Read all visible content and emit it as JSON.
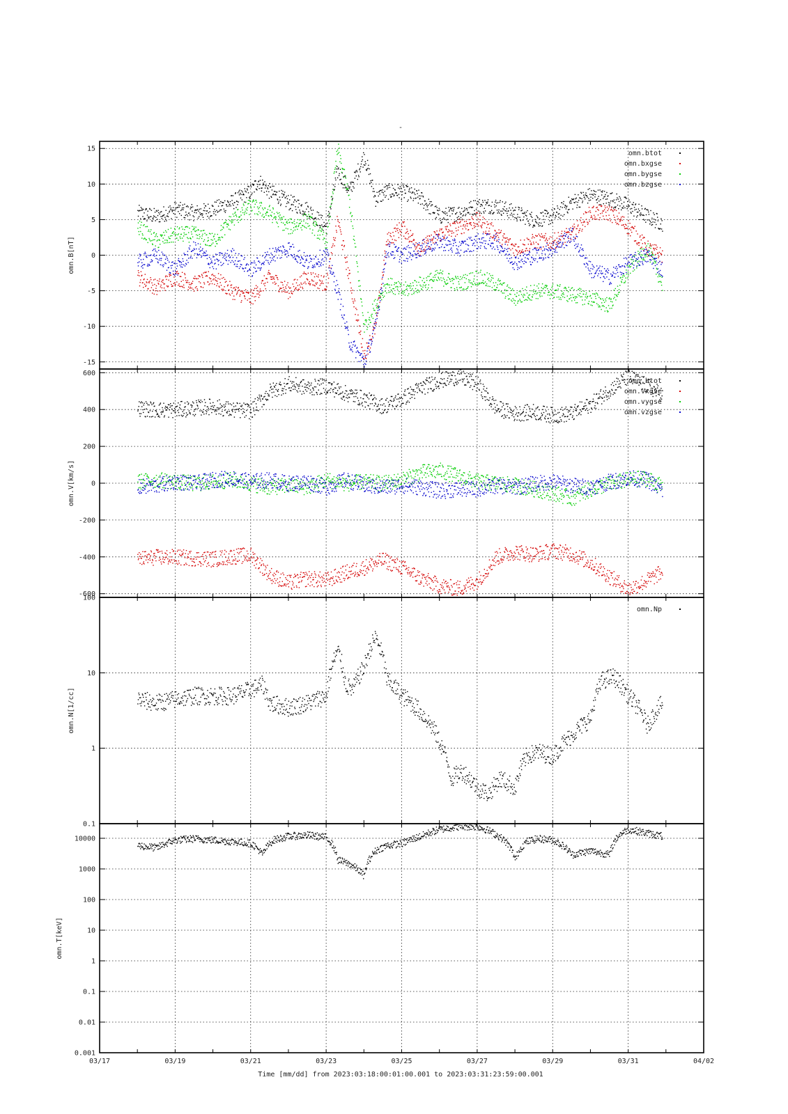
{
  "figure": {
    "title": "-",
    "xlabel": "Time [mm/dd]  from 2023:03:18:00:01:00.001  to  2023:03:31:23:59:00.001",
    "x_ticks": [
      "03/17",
      "03/19",
      "03/21",
      "03/23",
      "03/25",
      "03/27",
      "03/29",
      "03/31",
      "04/02"
    ],
    "colors": {
      "black": "#000000",
      "red": "#d40000",
      "green": "#00cc00",
      "blue": "#0000cc"
    }
  },
  "chart_data": [
    {
      "type": "scatter",
      "ylabel": "omn.B[nT]",
      "ylim": [
        -16,
        16
      ],
      "yscale": "linear",
      "y_ticks": [
        "-15",
        "-10",
        "-5",
        "0",
        "5",
        "10",
        "15"
      ],
      "legend_placement": "top-right",
      "grid": true,
      "series": [
        {
          "name": "omn.btot",
          "color": "#000000",
          "x": [
            18.0,
            18.5,
            19.0,
            19.5,
            20.0,
            20.5,
            21.0,
            21.2,
            21.5,
            22.0,
            22.5,
            23.0,
            23.3,
            23.6,
            24.0,
            24.3,
            24.6,
            25.0,
            25.5,
            26.0,
            26.5,
            27.0,
            27.5,
            28.0,
            28.5,
            29.0,
            29.5,
            30.0,
            30.5,
            31.0,
            31.5,
            31.9
          ],
          "y": [
            6,
            5.5,
            6.5,
            6,
            6.5,
            7.5,
            9,
            10.5,
            9,
            7.5,
            6.5,
            4,
            12,
            9,
            14,
            8,
            9,
            9,
            8,
            5.5,
            6,
            7,
            7,
            6,
            5,
            5.5,
            7.5,
            8.5,
            8,
            7,
            5.5,
            4.5
          ]
        },
        {
          "name": "omn.bxgse",
          "color": "#d40000",
          "x": [
            18.0,
            18.5,
            19.0,
            19.5,
            20.0,
            20.5,
            21.0,
            21.5,
            22.0,
            22.5,
            23.0,
            23.3,
            23.6,
            24.0,
            24.3,
            24.6,
            25.0,
            25.5,
            26.0,
            26.5,
            27.0,
            27.5,
            28.0,
            28.5,
            29.0,
            29.5,
            30.0,
            30.5,
            31.0,
            31.5,
            31.9
          ],
          "y": [
            -3,
            -4.5,
            -3,
            -4,
            -3,
            -5,
            -6,
            -3,
            -5,
            -3,
            -4,
            5,
            -3,
            -14,
            -10,
            2,
            4,
            1,
            3,
            4,
            5,
            3,
            1,
            2,
            2,
            3,
            6,
            6,
            4,
            1,
            0
          ]
        },
        {
          "name": "omn.bygse",
          "color": "#00cc00",
          "x": [
            18.0,
            18.5,
            19.0,
            19.5,
            20.0,
            20.5,
            21.0,
            21.5,
            22.0,
            22.5,
            23.0,
            23.3,
            23.6,
            24.0,
            24.3,
            24.6,
            25.0,
            25.5,
            26.0,
            26.5,
            27.0,
            27.5,
            28.0,
            28.5,
            29.0,
            29.5,
            30.0,
            30.5,
            31.0,
            31.5,
            31.9
          ],
          "y": [
            4,
            2,
            3,
            3,
            2,
            5,
            7,
            6,
            4,
            5,
            2,
            15,
            8,
            -10,
            -7,
            -4,
            -5,
            -4,
            -3,
            -4,
            -3,
            -4,
            -6,
            -5,
            -5,
            -5.5,
            -6,
            -7,
            -2,
            1,
            -4
          ]
        },
        {
          "name": "omn.bzgse",
          "color": "#0000cc",
          "x": [
            18.0,
            18.5,
            19.0,
            19.5,
            20.0,
            20.5,
            21.0,
            21.5,
            22.0,
            22.5,
            23.0,
            23.3,
            23.6,
            24.0,
            24.3,
            24.6,
            25.0,
            25.5,
            26.0,
            26.5,
            27.0,
            27.5,
            28.0,
            28.5,
            29.0,
            29.5,
            30.0,
            30.5,
            31.0,
            31.5,
            31.9
          ],
          "y": [
            -1,
            0,
            -2,
            1,
            -1,
            0,
            -2,
            0,
            1,
            -1,
            0,
            -5,
            -12,
            -15,
            -10,
            1,
            0,
            1,
            2,
            1,
            2,
            2,
            -1,
            0,
            1,
            3,
            -2,
            -3,
            -1,
            0,
            -2
          ]
        }
      ]
    },
    {
      "type": "scatter",
      "ylabel": "omn.V[km/s]",
      "ylim": [
        -620,
        620
      ],
      "yscale": "linear",
      "y_ticks": [
        "-600",
        "-400",
        "-200",
        "0",
        "200",
        "400",
        "600"
      ],
      "legend_placement": "top-right",
      "grid": true,
      "series": [
        {
          "name": "omn.btot",
          "color": "#000000",
          "x": [
            18.0,
            18.5,
            19.0,
            19.5,
            20.0,
            20.5,
            21.0,
            21.5,
            22.0,
            22.5,
            23.0,
            23.5,
            24.0,
            24.5,
            25.0,
            25.5,
            26.0,
            26.5,
            27.0,
            27.5,
            28.0,
            28.5,
            29.0,
            29.5,
            30.0,
            30.5,
            31.0,
            31.5,
            31.9
          ],
          "y": [
            410,
            400,
            400,
            410,
            420,
            400,
            395,
            500,
            540,
            520,
            530,
            490,
            460,
            420,
            460,
            520,
            560,
            580,
            540,
            410,
            380,
            390,
            370,
            380,
            430,
            510,
            580,
            530,
            480
          ]
        },
        {
          "name": "omn.vxgse",
          "color": "#d40000",
          "x": [
            18.0,
            18.5,
            19.0,
            19.5,
            20.0,
            20.5,
            21.0,
            21.5,
            22.0,
            22.5,
            23.0,
            23.5,
            24.0,
            24.5,
            25.0,
            25.5,
            26.0,
            26.5,
            27.0,
            27.5,
            28.0,
            28.5,
            29.0,
            29.5,
            30.0,
            30.5,
            31.0,
            31.5,
            31.9
          ],
          "y": [
            -410,
            -400,
            -400,
            -405,
            -410,
            -395,
            -390,
            -495,
            -540,
            -515,
            -525,
            -485,
            -455,
            -415,
            -455,
            -515,
            -555,
            -570,
            -530,
            -400,
            -370,
            -385,
            -365,
            -380,
            -430,
            -505,
            -575,
            -525,
            -480
          ]
        },
        {
          "name": "omn.vygse",
          "color": "#00cc00",
          "x": [
            18.0,
            18.5,
            19.0,
            19.5,
            20.0,
            20.5,
            21.0,
            21.5,
            22.0,
            22.5,
            23.0,
            23.5,
            24.0,
            24.5,
            25.0,
            25.5,
            26.0,
            26.5,
            27.0,
            27.5,
            28.0,
            28.5,
            29.0,
            29.5,
            30.0,
            30.5,
            31.0,
            31.5,
            31.9
          ],
          "y": [
            10,
            20,
            10,
            0,
            10,
            20,
            0,
            -20,
            -10,
            -20,
            20,
            0,
            10,
            0,
            20,
            60,
            70,
            40,
            10,
            0,
            -10,
            -30,
            -50,
            -80,
            -30,
            0,
            20,
            30,
            -20
          ]
        },
        {
          "name": "omn.vzgse",
          "color": "#0000cc",
          "x": [
            18.0,
            18.5,
            19.0,
            19.5,
            20.0,
            20.5,
            21.0,
            21.5,
            22.0,
            22.5,
            23.0,
            23.5,
            24.0,
            24.5,
            25.0,
            25.5,
            26.0,
            26.5,
            27.0,
            27.5,
            28.0,
            28.5,
            29.0,
            29.5,
            30.0,
            30.5,
            31.0,
            31.5,
            31.9
          ],
          "y": [
            -20,
            -10,
            10,
            0,
            20,
            30,
            10,
            20,
            0,
            10,
            -20,
            20,
            -10,
            -20,
            -10,
            -20,
            -40,
            -30,
            -30,
            -10,
            -20,
            0,
            10,
            -10,
            -20,
            10,
            30,
            20,
            -40
          ]
        }
      ]
    },
    {
      "type": "scatter",
      "ylabel": "omn.N[1/cc]",
      "ylim": [
        0.1,
        100
      ],
      "yscale": "log",
      "y_ticks": [
        "0.1",
        "1",
        "10",
        "100"
      ],
      "legend_placement": "top-right",
      "grid": true,
      "series": [
        {
          "name": "omn.Np",
          "color": "#000000",
          "x": [
            18.0,
            18.5,
            19.0,
            19.5,
            20.0,
            20.5,
            21.0,
            21.3,
            21.5,
            22.0,
            22.5,
            23.0,
            23.3,
            23.5,
            23.7,
            24.0,
            24.3,
            24.6,
            25.0,
            25.5,
            26.0,
            26.3,
            26.6,
            27.0,
            27.3,
            27.6,
            28.0,
            28.3,
            28.6,
            29.0,
            29.5,
            30.0,
            30.3,
            30.6,
            31.0,
            31.5,
            31.9
          ],
          "y": [
            4.5,
            4,
            4.5,
            5,
            5,
            5,
            6,
            7,
            4,
            3.5,
            4,
            5,
            20,
            7,
            6,
            12,
            30,
            8,
            5,
            3,
            1.2,
            0.4,
            0.5,
            0.3,
            0.25,
            0.4,
            0.3,
            0.8,
            0.9,
            0.8,
            1.5,
            2.5,
            8,
            9,
            5,
            2,
            4
          ]
        }
      ]
    },
    {
      "type": "scatter",
      "ylabel": "omn.T[keV]",
      "ylim": [
        0.001,
        30000
      ],
      "yscale": "log",
      "y_ticks": [
        "0.001",
        "0.01",
        "0.1",
        "1",
        "10",
        "100",
        "1000",
        "10000"
      ],
      "grid": true,
      "series": [
        {
          "name": "omn.T",
          "color": "#000000",
          "x": [
            18.0,
            18.5,
            19.0,
            19.5,
            20.0,
            20.5,
            21.0,
            21.3,
            21.6,
            22.0,
            22.5,
            23.0,
            23.3,
            23.6,
            24.0,
            24.3,
            24.6,
            25.0,
            25.5,
            26.0,
            26.5,
            27.0,
            28.0,
            28.3,
            28.6,
            29.0,
            29.5,
            30.0,
            30.5,
            30.8,
            31.0,
            31.5,
            31.9
          ],
          "y": [
            6000,
            5000,
            9000,
            10000,
            9000,
            8000,
            7000,
            3000,
            9000,
            12000,
            13000,
            11000,
            2000,
            1500,
            600,
            4000,
            6000,
            7000,
            12000,
            20000,
            25000,
            25000,
            2000,
            8000,
            10000,
            9000,
            3000,
            4000,
            3000,
            15000,
            20000,
            15000,
            12000
          ]
        }
      ]
    }
  ]
}
